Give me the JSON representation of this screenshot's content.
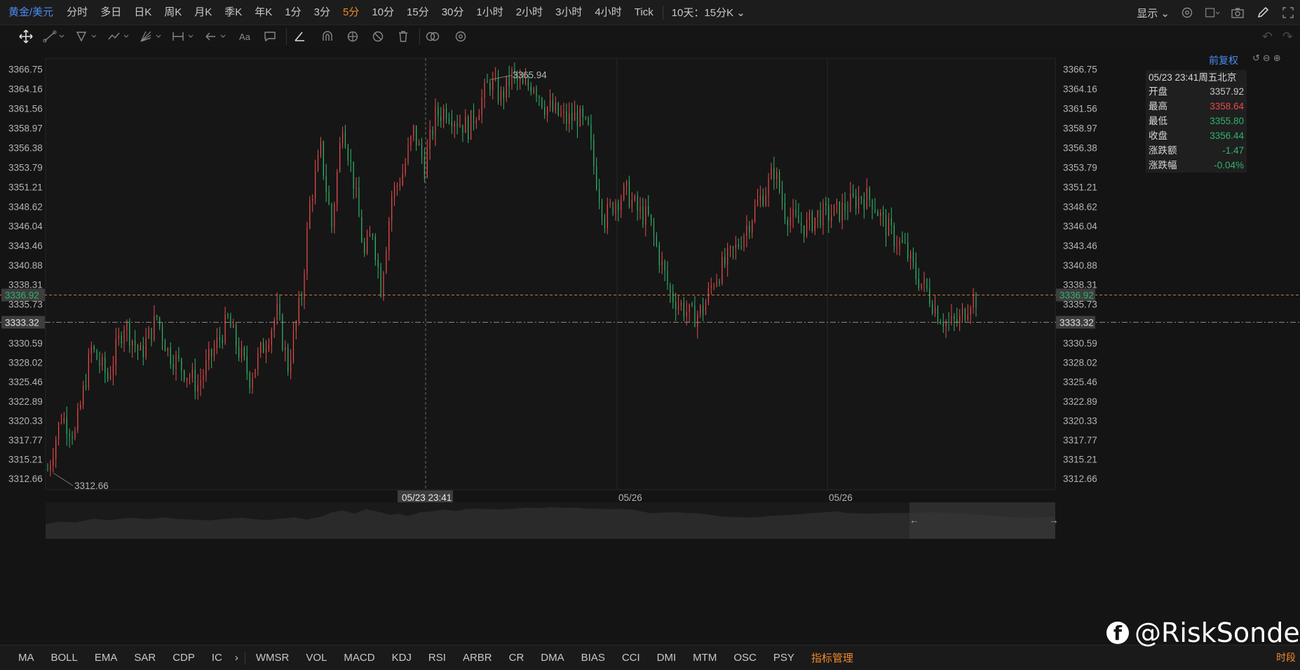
{
  "topbar": {
    "symbol": "黄金/美元",
    "periods": [
      "分时",
      "多日",
      "日K",
      "周K",
      "月K",
      "季K",
      "年K",
      "1分",
      "3分",
      "5分",
      "10分",
      "15分",
      "30分",
      "1小时",
      "2小时",
      "3小时",
      "4小时",
      "Tick"
    ],
    "active_period": "5分",
    "range_label": "10天：15分K",
    "show_label": "显示"
  },
  "toolbar": {
    "font_tool": "Aa",
    "undo_icon": "undo-icon",
    "redo_icon": "redo-icon"
  },
  "adjust": {
    "label": "前复权"
  },
  "info_panel": {
    "header": "05/23 23:41周五北京",
    "rows": [
      {
        "label": "开盘",
        "value": "3357.92",
        "tone": "neutral"
      },
      {
        "label": "最高",
        "value": "3358.64",
        "tone": "up"
      },
      {
        "label": "最低",
        "value": "3355.80",
        "tone": "down"
      },
      {
        "label": "收盘",
        "value": "3356.44",
        "tone": "down"
      },
      {
        "label": "涨跌额",
        "value": "-1.47",
        "tone": "down"
      },
      {
        "label": "涨跌幅",
        "value": "-0.04%",
        "tone": "down"
      }
    ]
  },
  "chart_data": {
    "type": "candlestick",
    "y_ticks": [
      "3366.75",
      "3364.16",
      "3361.56",
      "3358.97",
      "3356.38",
      "3353.79",
      "3351.21",
      "3348.62",
      "3346.04",
      "3343.46",
      "3340.88",
      "3338.31",
      "3335.73",
      "3333.32",
      "3330.59",
      "3328.02",
      "3325.46",
      "3322.89",
      "3320.33",
      "3317.77",
      "3315.21",
      "3312.66"
    ],
    "ylim": [
      3311.2,
      3368.2
    ],
    "x_labels": [
      "05/26",
      "05/26"
    ],
    "crosshair_time": "05/23 23:41",
    "high_marker": "3365.94",
    "low_marker": "3312.66",
    "current_price": "3336.92",
    "crosshair_price": "3333.32",
    "path": [
      [
        0,
        3313.8
      ],
      [
        5,
        3321.0
      ],
      [
        10,
        3318.5
      ],
      [
        16,
        3329.8
      ],
      [
        22,
        3326.0
      ],
      [
        28,
        3333.2
      ],
      [
        34,
        3329.0
      ],
      [
        40,
        3334.0
      ],
      [
        44,
        3329.5
      ],
      [
        50,
        3327.0
      ],
      [
        55,
        3325.0
      ],
      [
        60,
        3329.0
      ],
      [
        66,
        3333.5
      ],
      [
        70,
        3329.5
      ],
      [
        74,
        3326.0
      ],
      [
        80,
        3331.0
      ],
      [
        84,
        3334.5
      ],
      [
        88,
        3327.5
      ],
      [
        93,
        3336.9
      ],
      [
        96,
        3349.0
      ],
      [
        100,
        3356.0
      ],
      [
        104,
        3346.0
      ],
      [
        108,
        3360.0
      ],
      [
        112,
        3352.0
      ],
      [
        116,
        3342.0
      ],
      [
        119,
        3345.5
      ],
      [
        122,
        3338.0
      ],
      [
        126,
        3350.0
      ],
      [
        130,
        3353.0
      ],
      [
        134,
        3358.5
      ],
      [
        138,
        3354.0
      ],
      [
        142,
        3360.5
      ],
      [
        146,
        3361.5
      ],
      [
        150,
        3360.0
      ],
      [
        154,
        3359.0
      ],
      [
        158,
        3362.0
      ],
      [
        162,
        3365.2
      ],
      [
        166,
        3363.0
      ],
      [
        170,
        3365.9
      ],
      [
        174,
        3364.2
      ],
      [
        178,
        3365.0
      ],
      [
        182,
        3362.0
      ],
      [
        186,
        3361.0
      ],
      [
        190,
        3360.0
      ],
      [
        194,
        3360.5
      ],
      [
        198,
        3358.5
      ],
      [
        200,
        3354.0
      ],
      [
        204,
        3347.0
      ],
      [
        208,
        3349.5
      ],
      [
        212,
        3350.5
      ],
      [
        216,
        3348.0
      ],
      [
        220,
        3347.0
      ],
      [
        224,
        3342.0
      ],
      [
        228,
        3337.0
      ],
      [
        232,
        3335.5
      ],
      [
        236,
        3334.0
      ],
      [
        240,
        3335.0
      ],
      [
        244,
        3339.0
      ],
      [
        248,
        3341.0
      ],
      [
        252,
        3343.0
      ],
      [
        256,
        3346.0
      ],
      [
        260,
        3349.0
      ],
      [
        264,
        3351.5
      ],
      [
        266,
        3353.5
      ],
      [
        270,
        3348.0
      ],
      [
        274,
        3346.5
      ],
      [
        278,
        3346.0
      ],
      [
        282,
        3347.5
      ],
      [
        286,
        3347.5
      ],
      [
        290,
        3348.0
      ],
      [
        294,
        3349.0
      ],
      [
        298,
        3350.0
      ],
      [
        302,
        3349.5
      ],
      [
        306,
        3346.5
      ],
      [
        310,
        3344.5
      ],
      [
        314,
        3343.0
      ],
      [
        318,
        3339.5
      ],
      [
        322,
        3337.5
      ],
      [
        326,
        3334.5
      ],
      [
        330,
        3333.0
      ],
      [
        334,
        3333.5
      ],
      [
        338,
        3336.5
      ]
    ],
    "volume_profile": "area"
  },
  "indicators": {
    "main": [
      "MA",
      "BOLL",
      "EMA",
      "SAR",
      "CDP",
      "IC"
    ],
    "sub": [
      "WMSR",
      "VOL",
      "MACD",
      "KDJ",
      "RSI",
      "ARBR",
      "CR",
      "DMA",
      "BIAS",
      "CCI",
      "DMI",
      "MTM",
      "OSC",
      "PSY"
    ],
    "manager": "指标管理",
    "timeframe": "时段"
  },
  "watermark": {
    "handle": "@RiskSonder"
  },
  "colors": {
    "up": "#e84a4a",
    "down": "#2fb36a",
    "accent": "#f0892c",
    "link": "#4a8bf0"
  }
}
